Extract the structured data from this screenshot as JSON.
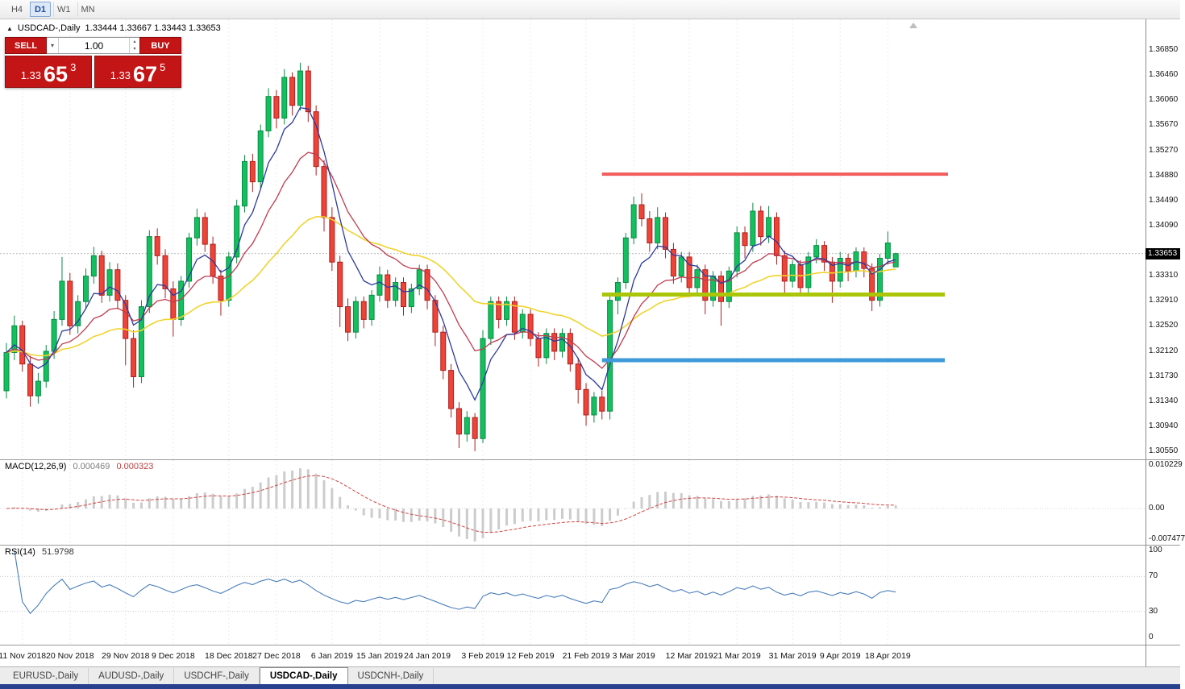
{
  "toolbar": {
    "timeframes": [
      {
        "label": "H4",
        "active": false
      },
      {
        "label": "D1",
        "active": true
      },
      {
        "label": "W1",
        "active": false
      },
      {
        "label": "MN",
        "active": false
      }
    ]
  },
  "chart_header": {
    "collapse_icon": "▲",
    "symbol_text": "USDCAD-,Daily",
    "ohlc": "1.33444 1.33667 1.33443 1.33653"
  },
  "trade_panel": {
    "sell_label": "SELL",
    "buy_label": "BUY",
    "volume": "1.00",
    "dropdown_icon": "▾",
    "spinner_up": "▴",
    "spinner_down": "▾",
    "sell_price_big": "1.33",
    "sell_price_pips": "65",
    "sell_price_frac": "3",
    "buy_price_big": "1.33",
    "buy_price_pips": "67",
    "buy_price_frac": "5",
    "color": "#c31515"
  },
  "price_axis": {
    "labels": [
      {
        "text": "1.36850",
        "value": 1.3685
      },
      {
        "text": "1.36460",
        "value": 1.3646
      },
      {
        "text": "1.36060",
        "value": 1.3606
      },
      {
        "text": "1.35670",
        "value": 1.3567
      },
      {
        "text": "1.35270",
        "value": 1.3527
      },
      {
        "text": "1.34880",
        "value": 1.3488
      },
      {
        "text": "1.34490",
        "value": 1.3449
      },
      {
        "text": "1.34090",
        "value": 1.3409
      },
      {
        "text": "1.33310",
        "value": 1.3331
      },
      {
        "text": "1.32910",
        "value": 1.3291
      },
      {
        "text": "1.32520",
        "value": 1.3252
      },
      {
        "text": "1.32120",
        "value": 1.3212
      },
      {
        "text": "1.31730",
        "value": 1.3173
      },
      {
        "text": "1.31340",
        "value": 1.3134
      },
      {
        "text": "1.30940",
        "value": 1.3094
      },
      {
        "text": "1.30550",
        "value": 1.3055
      }
    ],
    "current": {
      "text": "1.33653",
      "value": 1.33653
    }
  },
  "macd_panel": {
    "name": "MACD(12,26,9)",
    "value_main": "0.000469",
    "value_signal": "0.000323",
    "axis_max": {
      "text": "0.010229",
      "value": 0.010229
    },
    "axis_zero": {
      "text": "0.00",
      "value": 0
    },
    "axis_min": {
      "text": "-0.007477",
      "value": -0.007477
    }
  },
  "rsi_panel": {
    "name": "RSI(14)",
    "value": "51.9798",
    "axis": [
      {
        "text": "100",
        "value": 100
      },
      {
        "text": "70",
        "value": 70
      },
      {
        "text": "30",
        "value": 30
      },
      {
        "text": "0",
        "value": 0
      }
    ],
    "levels": [
      70,
      30
    ]
  },
  "tabs": [
    {
      "label": "EURUSD-,Daily",
      "active": false
    },
    {
      "label": "AUDUSD-,Daily",
      "active": false
    },
    {
      "label": "USDCHF-,Daily",
      "active": false
    },
    {
      "label": "USDCAD-,Daily",
      "active": true
    },
    {
      "label": "USDCNH-,Daily",
      "active": false
    }
  ],
  "window": {
    "statusbar_color": "#27418f"
  },
  "chart_data": {
    "type": "candlestick",
    "symbol": "USDCAD-",
    "timeframe": "Daily",
    "title": "USDCAD-,Daily",
    "ohlc_current": {
      "open": 1.33444,
      "high": 1.33667,
      "low": 1.33443,
      "close": 1.33653
    },
    "price_range": [
      1.3055,
      1.3685
    ],
    "x_ticks": [
      {
        "label": "11 Nov 2018",
        "index": 2
      },
      {
        "label": "20 Nov 2018",
        "index": 8
      },
      {
        "label": "29 Nov 2018",
        "index": 15
      },
      {
        "label": "9 Dec 2018",
        "index": 21
      },
      {
        "label": "18 Dec 2018",
        "index": 28
      },
      {
        "label": "27 Dec 2018",
        "index": 34
      },
      {
        "label": "6 Jan 2019",
        "index": 41
      },
      {
        "label": "15 Jan 2019",
        "index": 47
      },
      {
        "label": "24 Jan 2019",
        "index": 53
      },
      {
        "label": "3 Feb 2019",
        "index": 60
      },
      {
        "label": "12 Feb 2019",
        "index": 66
      },
      {
        "label": "21 Feb 2019",
        "index": 73
      },
      {
        "label": "3 Mar 2019",
        "index": 79
      },
      {
        "label": "12 Mar 2019",
        "index": 86
      },
      {
        "label": "21 Mar 2019",
        "index": 92
      },
      {
        "label": "31 Mar 2019",
        "index": 99
      },
      {
        "label": "9 Apr 2019",
        "index": 105
      },
      {
        "label": "18 Apr 2019",
        "index": 111
      }
    ],
    "style": {
      "up_color": "#12c05e",
      "up_border": "#0a8a44",
      "down_color": "#ef4337",
      "down_border": "#ad1f1f"
    },
    "overlays": {
      "ma_fast": {
        "period": 6,
        "color": "#2c3a9e"
      },
      "ma_mid": {
        "period": 14,
        "color": "#bf3b50"
      },
      "ma_slow": {
        "period": 34,
        "color": "#f0d42e"
      },
      "hlines": [
        {
          "name": "resistance-line-red",
          "price": 1.349,
          "color": "#f25c5c",
          "width": 4,
          "from_index": 75,
          "to_x": 1176
        },
        {
          "name": "support-line-olive",
          "price": 1.3301,
          "color": "#abc608",
          "width": 5,
          "from_index": 75,
          "to_x": 1172
        },
        {
          "name": "support-line-blue",
          "price": 1.3198,
          "color": "#3e9ad9",
          "width": 5,
          "from_index": 75,
          "to_x": 1172
        }
      ]
    },
    "indicators": {
      "macd": {
        "fast": 12,
        "slow": 26,
        "signal": 9,
        "histogram_color": "#cccccc",
        "signal_color": "#d24545",
        "current_main": 0.000469,
        "current_signal": 0.000323
      },
      "rsi": {
        "period": 14,
        "color": "#4a7ebb",
        "current": 51.9798,
        "levels": [
          30,
          70
        ]
      }
    },
    "candles": [
      [
        1.315,
        1.3225,
        1.3138,
        1.321
      ],
      [
        1.321,
        1.3268,
        1.3198,
        1.3252
      ],
      [
        1.3252,
        1.326,
        1.318,
        1.3192
      ],
      [
        1.3192,
        1.3205,
        1.3125,
        1.3142
      ],
      [
        1.3142,
        1.3178,
        1.313,
        1.3165
      ],
      [
        1.3165,
        1.3222,
        1.3155,
        1.3212
      ],
      [
        1.3212,
        1.3275,
        1.32,
        1.3262
      ],
      [
        1.3262,
        1.336,
        1.3252,
        1.3322
      ],
      [
        1.3322,
        1.3335,
        1.3238,
        1.3252
      ],
      [
        1.3252,
        1.33,
        1.324,
        1.329
      ],
      [
        1.329,
        1.3342,
        1.3278,
        1.333
      ],
      [
        1.333,
        1.3376,
        1.3318,
        1.3362
      ],
      [
        1.3362,
        1.337,
        1.3288,
        1.33
      ],
      [
        1.33,
        1.3352,
        1.329,
        1.334
      ],
      [
        1.334,
        1.335,
        1.3278,
        1.3292
      ],
      [
        1.3292,
        1.33,
        1.319,
        1.3232
      ],
      [
        1.3232,
        1.3245,
        1.3155,
        1.3172
      ],
      [
        1.3172,
        1.3292,
        1.3162,
        1.3282
      ],
      [
        1.3282,
        1.3402,
        1.3272,
        1.3392
      ],
      [
        1.3392,
        1.3405,
        1.3348,
        1.3362
      ],
      [
        1.3362,
        1.3372,
        1.3295,
        1.331
      ],
      [
        1.331,
        1.3322,
        1.3235,
        1.3262
      ],
      [
        1.3262,
        1.333,
        1.3252,
        1.3322
      ],
      [
        1.3322,
        1.3398,
        1.3312,
        1.339
      ],
      [
        1.339,
        1.3436,
        1.3378,
        1.3422
      ],
      [
        1.3422,
        1.343,
        1.3368,
        1.338
      ],
      [
        1.338,
        1.3392,
        1.3318,
        1.333
      ],
      [
        1.333,
        1.334,
        1.3268,
        1.3292
      ],
      [
        1.3292,
        1.3368,
        1.3282,
        1.336
      ],
      [
        1.336,
        1.345,
        1.335,
        1.344
      ],
      [
        1.344,
        1.352,
        1.343,
        1.351
      ],
      [
        1.351,
        1.3522,
        1.3462,
        1.3478
      ],
      [
        1.3478,
        1.3568,
        1.3468,
        1.3558
      ],
      [
        1.3558,
        1.3625,
        1.3548,
        1.3612
      ],
      [
        1.3612,
        1.3622,
        1.3562,
        1.3578
      ],
      [
        1.3578,
        1.3655,
        1.3568,
        1.3642
      ],
      [
        1.3642,
        1.365,
        1.3582,
        1.3598
      ],
      [
        1.3598,
        1.3665,
        1.359,
        1.3652
      ],
      [
        1.3652,
        1.366,
        1.3572,
        1.3588
      ],
      [
        1.3588,
        1.3598,
        1.3488,
        1.3502
      ],
      [
        1.3502,
        1.3512,
        1.34,
        1.3422
      ],
      [
        1.3422,
        1.3438,
        1.3338,
        1.3352
      ],
      [
        1.3352,
        1.3362,
        1.325,
        1.3282
      ],
      [
        1.3282,
        1.3295,
        1.3228,
        1.3242
      ],
      [
        1.3242,
        1.3298,
        1.3232,
        1.329
      ],
      [
        1.329,
        1.3298,
        1.3248,
        1.3262
      ],
      [
        1.3262,
        1.3308,
        1.3252,
        1.33
      ],
      [
        1.33,
        1.3345,
        1.329,
        1.3332
      ],
      [
        1.3332,
        1.334,
        1.328,
        1.3292
      ],
      [
        1.3292,
        1.3328,
        1.3282,
        1.332
      ],
      [
        1.332,
        1.3328,
        1.3268,
        1.3282
      ],
      [
        1.3282,
        1.3318,
        1.3272,
        1.331
      ],
      [
        1.331,
        1.3348,
        1.33,
        1.334
      ],
      [
        1.334,
        1.3348,
        1.3278,
        1.3292
      ],
      [
        1.3292,
        1.33,
        1.322,
        1.3242
      ],
      [
        1.3242,
        1.3252,
        1.3168,
        1.3182
      ],
      [
        1.3182,
        1.3192,
        1.3108,
        1.3122
      ],
      [
        1.3122,
        1.3132,
        1.306,
        1.3082
      ],
      [
        1.3082,
        1.3118,
        1.307,
        1.3108
      ],
      [
        1.3108,
        1.3115,
        1.3055,
        1.3075
      ],
      [
        1.3075,
        1.3245,
        1.3068,
        1.3232
      ],
      [
        1.3232,
        1.3298,
        1.3222,
        1.329
      ],
      [
        1.329,
        1.3298,
        1.3248,
        1.3262
      ],
      [
        1.3262,
        1.3298,
        1.3252,
        1.329
      ],
      [
        1.329,
        1.3298,
        1.323,
        1.3242
      ],
      [
        1.3242,
        1.3278,
        1.3232,
        1.327
      ],
      [
        1.327,
        1.3278,
        1.322,
        1.3232
      ],
      [
        1.3232,
        1.3242,
        1.3188,
        1.3202
      ],
      [
        1.3202,
        1.3248,
        1.3192,
        1.324
      ],
      [
        1.324,
        1.3248,
        1.3198,
        1.3212
      ],
      [
        1.3212,
        1.3248,
        1.3202,
        1.324
      ],
      [
        1.324,
        1.3248,
        1.318,
        1.3192
      ],
      [
        1.3192,
        1.3202,
        1.313,
        1.3152
      ],
      [
        1.3152,
        1.3162,
        1.3095,
        1.3112
      ],
      [
        1.3112,
        1.3148,
        1.31,
        1.314
      ],
      [
        1.314,
        1.315,
        1.3105,
        1.3118
      ],
      [
        1.3118,
        1.3302,
        1.3105,
        1.3292
      ],
      [
        1.3292,
        1.3328,
        1.327,
        1.332
      ],
      [
        1.332,
        1.3398,
        1.331,
        1.339
      ],
      [
        1.339,
        1.3455,
        1.338,
        1.3442
      ],
      [
        1.3442,
        1.346,
        1.3408,
        1.342
      ],
      [
        1.342,
        1.3432,
        1.3368,
        1.3382
      ],
      [
        1.3382,
        1.3438,
        1.3372,
        1.3422
      ],
      [
        1.3422,
        1.343,
        1.3358,
        1.3372
      ],
      [
        1.3372,
        1.3382,
        1.3318,
        1.333
      ],
      [
        1.333,
        1.3368,
        1.332,
        1.336
      ],
      [
        1.336,
        1.3368,
        1.3298,
        1.3312
      ],
      [
        1.3312,
        1.3348,
        1.3302,
        1.334
      ],
      [
        1.334,
        1.3348,
        1.327,
        1.3292
      ],
      [
        1.3292,
        1.3338,
        1.3282,
        1.333
      ],
      [
        1.333,
        1.3338,
        1.3252,
        1.329
      ],
      [
        1.329,
        1.3345,
        1.328,
        1.3338
      ],
      [
        1.3338,
        1.3408,
        1.3328,
        1.3398
      ],
      [
        1.3398,
        1.3408,
        1.3358,
        1.3378
      ],
      [
        1.3378,
        1.3445,
        1.3368,
        1.3432
      ],
      [
        1.3432,
        1.344,
        1.3378,
        1.3392
      ],
      [
        1.3392,
        1.344,
        1.3382,
        1.3422
      ],
      [
        1.3422,
        1.343,
        1.3348,
        1.3362
      ],
      [
        1.3362,
        1.337,
        1.3298,
        1.3322
      ],
      [
        1.3322,
        1.3355,
        1.3312,
        1.3348
      ],
      [
        1.3348,
        1.3355,
        1.3298,
        1.3312
      ],
      [
        1.3312,
        1.3368,
        1.3302,
        1.336
      ],
      [
        1.336,
        1.3388,
        1.335,
        1.3378
      ],
      [
        1.3378,
        1.3385,
        1.3338,
        1.3352
      ],
      [
        1.3352,
        1.336,
        1.3288,
        1.3322
      ],
      [
        1.3322,
        1.3368,
        1.3312,
        1.3358
      ],
      [
        1.3358,
        1.3365,
        1.3322,
        1.3338
      ],
      [
        1.3338,
        1.3375,
        1.3328,
        1.3368
      ],
      [
        1.3368,
        1.3375,
        1.3328,
        1.3342
      ],
      [
        1.3342,
        1.335,
        1.3275,
        1.3292
      ],
      [
        1.3292,
        1.3365,
        1.3282,
        1.3358
      ],
      [
        1.3358,
        1.34,
        1.3348,
        1.3382
      ],
      [
        1.33444,
        1.33667,
        1.33443,
        1.33653
      ]
    ]
  }
}
